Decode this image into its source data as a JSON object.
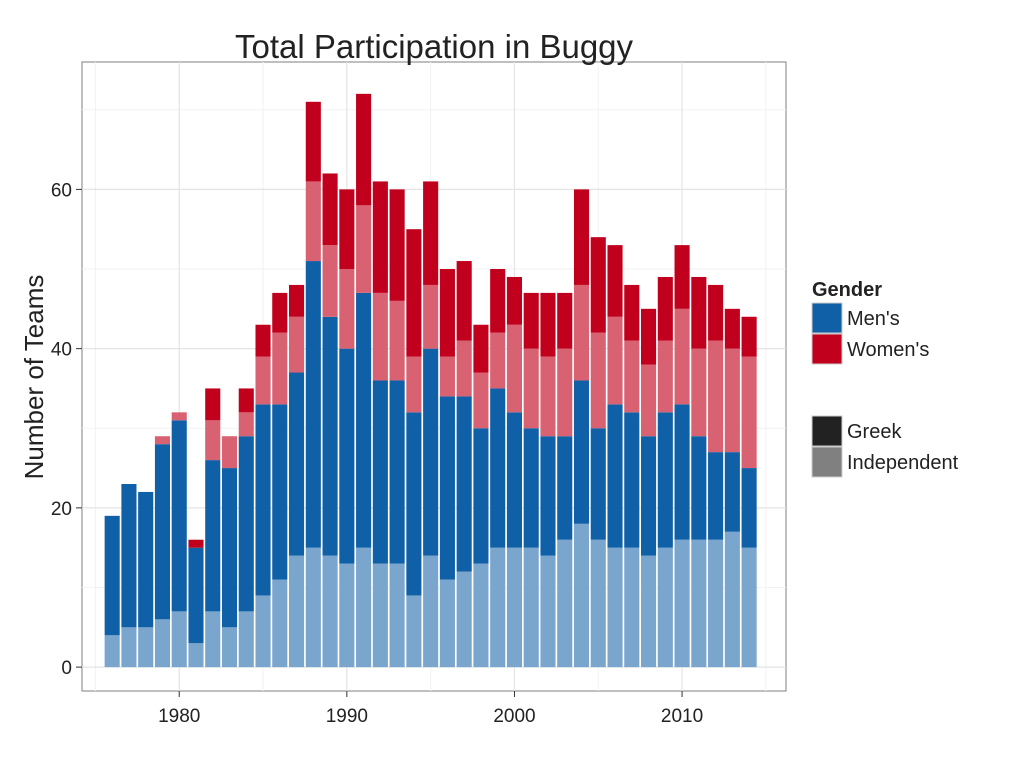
{
  "chart_data": {
    "type": "bar",
    "stacked": true,
    "title": "Total Participation in Buggy",
    "xlabel": "",
    "ylabel": "Number of Teams",
    "xlim": [
      1974.2,
      2016.2
    ],
    "ylim": [
      -3,
      76
    ],
    "x_ticks": [
      1980,
      1990,
      2000,
      2010
    ],
    "y_ticks": [
      0,
      20,
      40,
      60
    ],
    "grid": true,
    "legend_position": "right",
    "legend": {
      "gender_title": "Gender",
      "gender_items": [
        {
          "label": "Men's",
          "color": "#1060A8"
        },
        {
          "label": "Women's",
          "color": "#C0001C"
        }
      ],
      "type_items": [
        {
          "label": "Greek",
          "color": "#222222"
        },
        {
          "label": "Independent",
          "color": "#808080"
        }
      ]
    },
    "colors": {
      "mens_independent": "#7AA6CE",
      "mens_greek": "#1060A8",
      "womens_independent": "#D96272",
      "womens_greek": "#C0001C"
    },
    "x": [
      1976,
      1977,
      1978,
      1979,
      1980,
      1981,
      1982,
      1983,
      1984,
      1985,
      1986,
      1987,
      1988,
      1989,
      1990,
      1991,
      1992,
      1993,
      1994,
      1995,
      1996,
      1997,
      1998,
      1999,
      2000,
      2001,
      2002,
      2003,
      2004,
      2005,
      2006,
      2007,
      2008,
      2009,
      2010,
      2011,
      2012,
      2013,
      2014
    ],
    "series": [
      {
        "name": "Men's Independent",
        "values": [
          4,
          5,
          5,
          6,
          7,
          3,
          7,
          5,
          7,
          9,
          11,
          14,
          15,
          14,
          13,
          15,
          13,
          13,
          9,
          14,
          11,
          12,
          13,
          15,
          15,
          15,
          14,
          16,
          18,
          16,
          15,
          15,
          14,
          15,
          16,
          16,
          16,
          17,
          15
        ]
      },
      {
        "name": "Men's Greek",
        "values": [
          15,
          18,
          17,
          22,
          24,
          12,
          19,
          20,
          22,
          24,
          22,
          23,
          36,
          30,
          27,
          32,
          23,
          23,
          23,
          26,
          23,
          22,
          17,
          20,
          17,
          15,
          15,
          13,
          18,
          14,
          18,
          17,
          15,
          17,
          17,
          13,
          11,
          10,
          10
        ]
      },
      {
        "name": "Women's Independent",
        "values": [
          0,
          0,
          0,
          1,
          1,
          0,
          5,
          4,
          3,
          6,
          9,
          7,
          10,
          9,
          10,
          11,
          11,
          10,
          7,
          8,
          5,
          7,
          7,
          7,
          11,
          10,
          10,
          11,
          12,
          12,
          11,
          9,
          9,
          9,
          12,
          11,
          14,
          13,
          14
        ]
      },
      {
        "name": "Women's Greek",
        "values": [
          0,
          0,
          0,
          0,
          0,
          1,
          4,
          0,
          3,
          4,
          5,
          4,
          10,
          9,
          10,
          14,
          14,
          14,
          16,
          13,
          11,
          10,
          6,
          8,
          6,
          7,
          8,
          7,
          12,
          12,
          9,
          7,
          7,
          8,
          8,
          9,
          7,
          5,
          5
        ]
      }
    ]
  }
}
